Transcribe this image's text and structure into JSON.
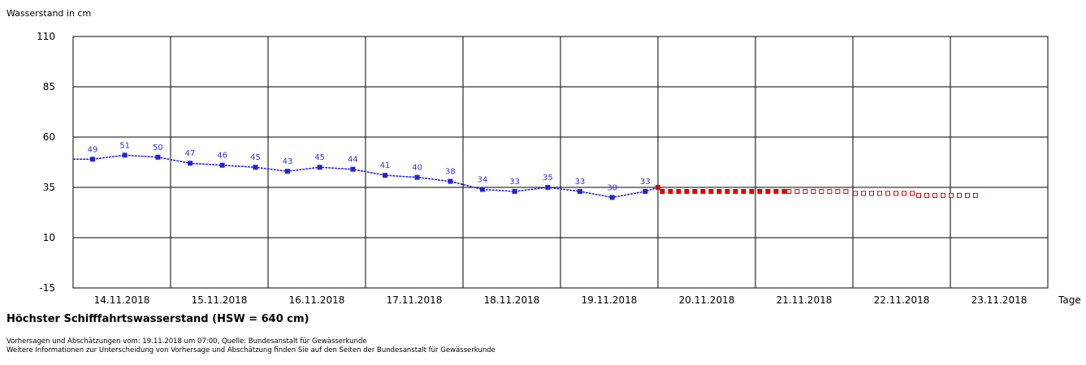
{
  "chart_data": {
    "type": "line",
    "ylabel": "Wasserstand in cm",
    "xlabel": "Tage",
    "ylim": [
      -15,
      110
    ],
    "yticks": [
      110,
      85,
      60,
      35,
      10,
      -15
    ],
    "days": [
      "14.11.2018",
      "15.11.2018",
      "16.11.2018",
      "17.11.2018",
      "18.11.2018",
      "19.11.2018",
      "20.11.2018",
      "21.11.2018",
      "22.11.2018",
      "23.11.2018"
    ],
    "grid": true,
    "measured_points": [
      {
        "day": 0.2,
        "value": 49
      },
      {
        "day": 0.53,
        "value": 51
      },
      {
        "day": 0.87,
        "value": 50
      },
      {
        "day": 1.2,
        "value": 47
      },
      {
        "day": 1.53,
        "value": 46
      },
      {
        "day": 1.87,
        "value": 45
      },
      {
        "day": 2.2,
        "value": 43
      },
      {
        "day": 2.53,
        "value": 45
      },
      {
        "day": 2.87,
        "value": 44
      },
      {
        "day": 3.2,
        "value": 41
      },
      {
        "day": 3.53,
        "value": 40
      },
      {
        "day": 3.87,
        "value": 38
      },
      {
        "day": 4.2,
        "value": 34
      },
      {
        "day": 4.53,
        "value": 33
      },
      {
        "day": 4.87,
        "value": 35
      },
      {
        "day": 5.2,
        "value": 33
      },
      {
        "day": 5.53,
        "value": 30
      },
      {
        "day": 5.87,
        "value": 33
      }
    ],
    "forecast": [
      {
        "from_day": 6.02,
        "to_day": 7.32,
        "value": 33,
        "style": "filled"
      },
      {
        "from_day": 7.32,
        "to_day": 8.0,
        "value": 33,
        "style": "open"
      },
      {
        "from_day": 8.0,
        "to_day": 8.65,
        "value": 32,
        "style": "open"
      },
      {
        "from_day": 8.65,
        "to_day": 9.3,
        "value": 31,
        "style": "open"
      }
    ],
    "colors": {
      "measured": "#2222dd",
      "forecast": "#dd0000",
      "grid": "#000000"
    }
  },
  "hsw_text": "Höchster Schifffahrtswasserstand (HSW = 640 cm)",
  "footer": {
    "line1": "Vorhersagen und Abschätzungen vom: 19.11.2018 um 07:00, Quelle: Bundesanstalt für Gewässerkunde",
    "line2": "Weitere Informationen zur Unterscheidung von Vorhersage und Abschätzung finden Sie auf den Seiten der Bundesanstalt für Gewässerkunde"
  }
}
